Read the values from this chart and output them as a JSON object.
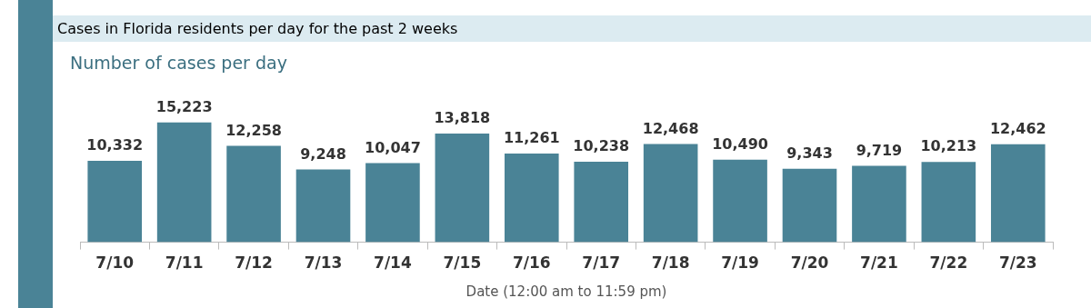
{
  "chart_data": {
    "type": "bar",
    "title": "Cases in Florida residents per day for the past 2 weeks",
    "subtitle": "Number of cases per day",
    "xlabel": "Date (12:00 am to 11:59 pm)",
    "categories": [
      "7/10",
      "7/11",
      "7/12",
      "7/13",
      "7/14",
      "7/15",
      "7/16",
      "7/17",
      "7/18",
      "7/19",
      "7/20",
      "7/21",
      "7/22",
      "7/23"
    ],
    "values": [
      10332,
      15223,
      12258,
      9248,
      10047,
      13818,
      11261,
      10238,
      12468,
      10490,
      9343,
      9719,
      10213,
      12462
    ],
    "value_labels": [
      "10,332",
      "15,223",
      "12,258",
      "9,248",
      "10,047",
      "13,818",
      "11,261",
      "10,238",
      "12,468",
      "10,490",
      "9,343",
      "9,719",
      "10,213",
      "12,462"
    ],
    "color": "#4a8396",
    "grid": false,
    "legend": false
  }
}
